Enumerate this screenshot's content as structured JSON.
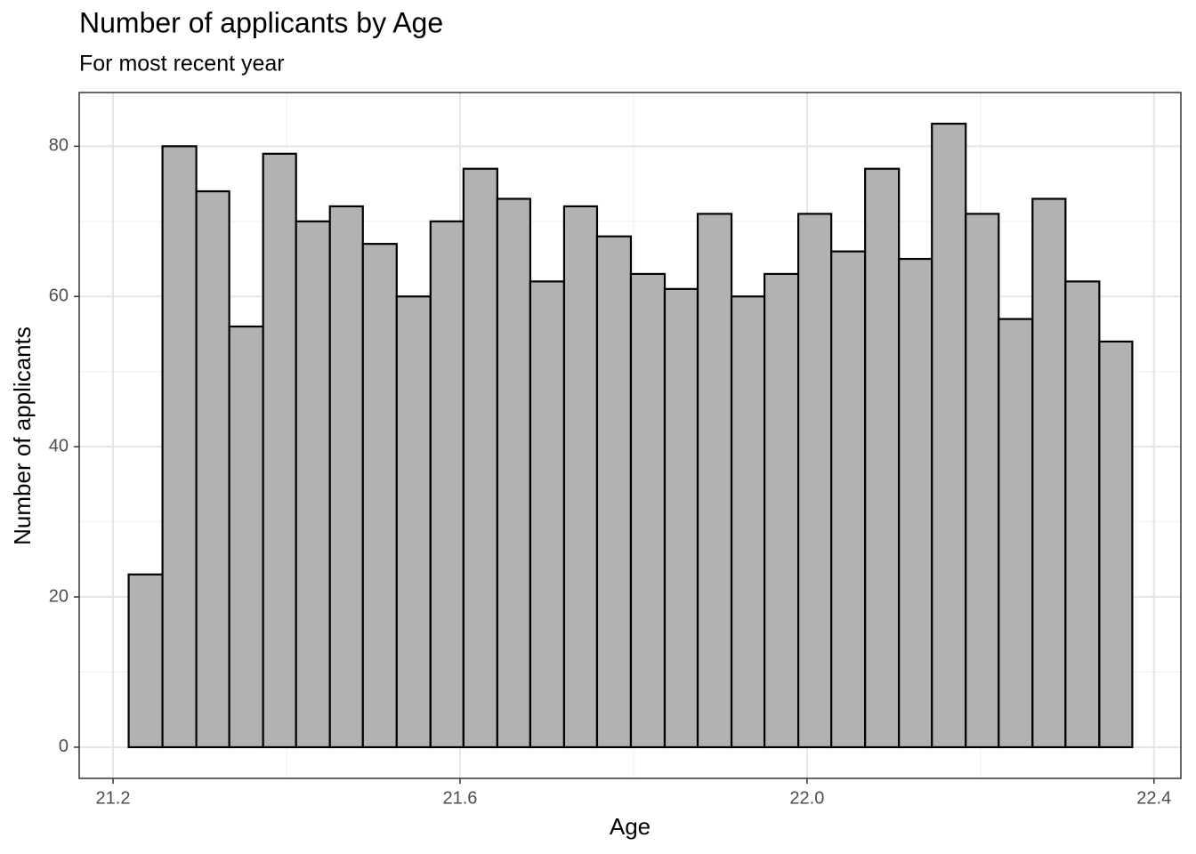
{
  "chart_data": {
    "type": "histogram",
    "title": "Number of applicants by Age",
    "subtitle": "For most recent year",
    "x_label": "Age",
    "y_label": "Number of applicants",
    "bins": [
      21.218,
      21.257,
      21.296,
      21.334,
      21.373,
      21.411,
      21.45,
      21.488,
      21.527,
      21.566,
      21.604,
      21.643,
      21.681,
      21.72,
      21.758,
      21.797,
      21.836,
      21.874,
      21.913,
      21.951,
      21.99,
      22.028,
      22.067,
      22.106,
      22.144,
      22.183,
      22.221,
      22.26,
      22.298,
      22.337,
      22.375
    ],
    "values": [
      23,
      80,
      74,
      56,
      79,
      70,
      72,
      67,
      60,
      70,
      77,
      73,
      62,
      72,
      68,
      63,
      61,
      71,
      60,
      63,
      71,
      66,
      77,
      65,
      83,
      71,
      57,
      73,
      62,
      54
    ],
    "color": "#b2b2b2",
    "edge_color": "#000000",
    "xlim": [
      21.161,
      22.431
    ],
    "ylim": [
      -4.15,
      87.15
    ],
    "xticks": [
      21.2,
      21.6,
      {
        "value": 22,
        "label": "22.0"
      },
      22.4
    ],
    "yticks": [
      0,
      20,
      40,
      60,
      80
    ],
    "grid": true
  }
}
